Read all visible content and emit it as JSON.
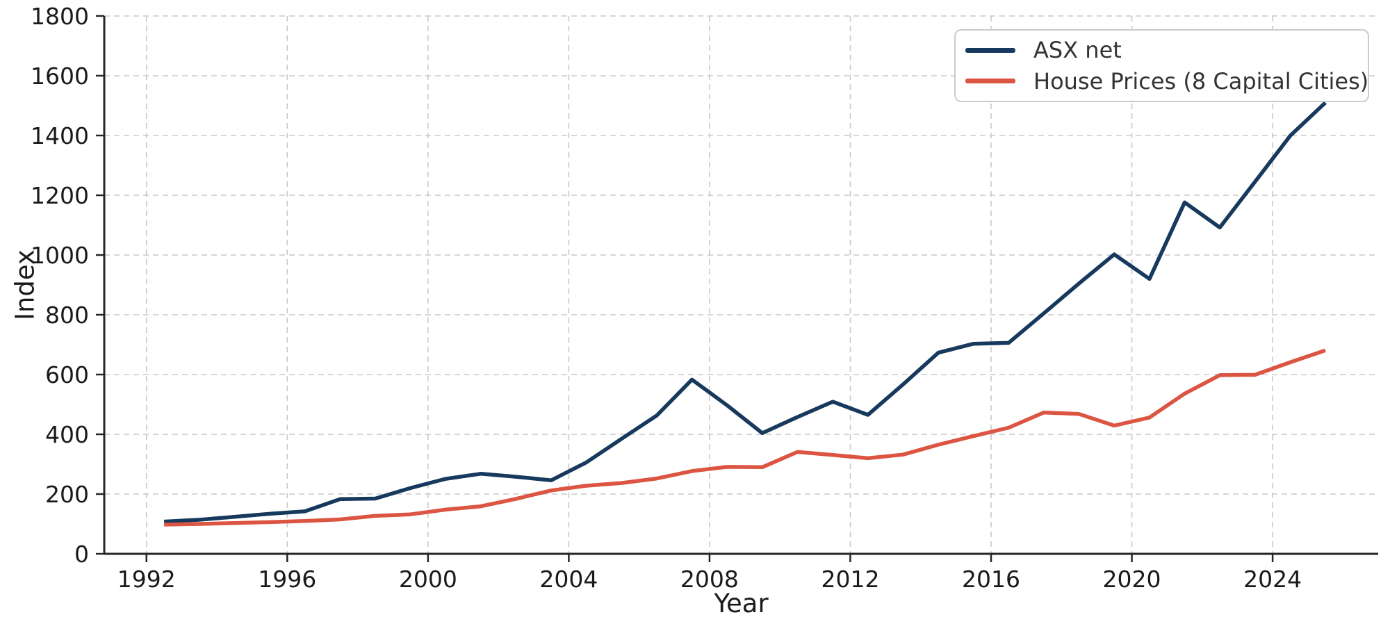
{
  "chart_data": {
    "type": "line",
    "title": "",
    "xlabel": "Year",
    "ylabel": "Index",
    "xlim": [
      1990.8,
      2027.0
    ],
    "ylim": [
      0,
      1800
    ],
    "x_ticks": [
      1992,
      1996,
      2000,
      2004,
      2008,
      2012,
      2016,
      2020,
      2024
    ],
    "y_ticks": [
      0,
      200,
      400,
      600,
      800,
      1000,
      1200,
      1400,
      1600,
      1800
    ],
    "grid": {
      "visible": true,
      "style": "dashed",
      "color": "#c9c9c9"
    },
    "axis_colors": {
      "spine": "#262626",
      "tick": "#262626",
      "tick_label": "#1a1a1a"
    },
    "legend": {
      "position": "upper-right",
      "border_color": "#cccccc",
      "background": "#ffffff"
    },
    "x": [
      1992.5,
      1993.5,
      1994.5,
      1995.5,
      1996.5,
      1997.5,
      1998.5,
      1999.5,
      2000.5,
      2001.5,
      2002.5,
      2003.5,
      2004.5,
      2005.5,
      2006.5,
      2007.5,
      2008.5,
      2009.5,
      2010.5,
      2011.5,
      2012.5,
      2013.5,
      2014.5,
      2015.5,
      2016.5,
      2017.5,
      2018.5,
      2019.5,
      2020.5,
      2021.5,
      2022.5,
      2023.5,
      2024.5,
      2025.5
    ],
    "series": [
      {
        "name": "ASX net",
        "color": "#16395d",
        "values": [
          108,
          114,
          124,
          134,
          142,
          183,
          185,
          220,
          251,
          268,
          258,
          246,
          306,
          385,
          463,
          583,
          497,
          404,
          458,
          509,
          465,
          567,
          673,
          703,
          706,
          805,
          905,
          1002,
          920,
          1176,
          1092,
          1245,
          1399,
          1510
        ]
      },
      {
        "name": "House Prices (8 Capital Cities)",
        "color": "#dc5442",
        "values": [
          98,
          100,
          103,
          106,
          110,
          115,
          127,
          132,
          148,
          159,
          184,
          212,
          228,
          237,
          252,
          277,
          291,
          290,
          341,
          331,
          320,
          332,
          365,
          394,
          422,
          473,
          468,
          429,
          456,
          536,
          598,
          599,
          641,
          681
        ]
      }
    ]
  }
}
